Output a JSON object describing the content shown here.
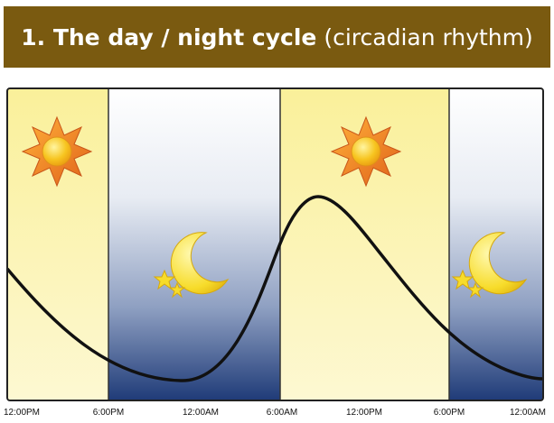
{
  "title": {
    "bold": "1. The day / night cycle",
    "light": "(circadian rhythm)"
  },
  "colors": {
    "title_bg": "#7a5a10",
    "day_fill": "#fbf3a6",
    "night_top": "#ffffff",
    "night_bottom": "#1e3a78",
    "curve": "#111111",
    "frame": "#222222"
  },
  "icons": [
    "sun-icon",
    "moon-stars-icon",
    "sun-icon",
    "moon-stars-icon"
  ],
  "time_labels": [
    "12:00PM",
    "6:00PM",
    "12:00AM",
    "6:00AM",
    "12:00PM",
    "6:00PM",
    "12:00AM"
  ]
}
